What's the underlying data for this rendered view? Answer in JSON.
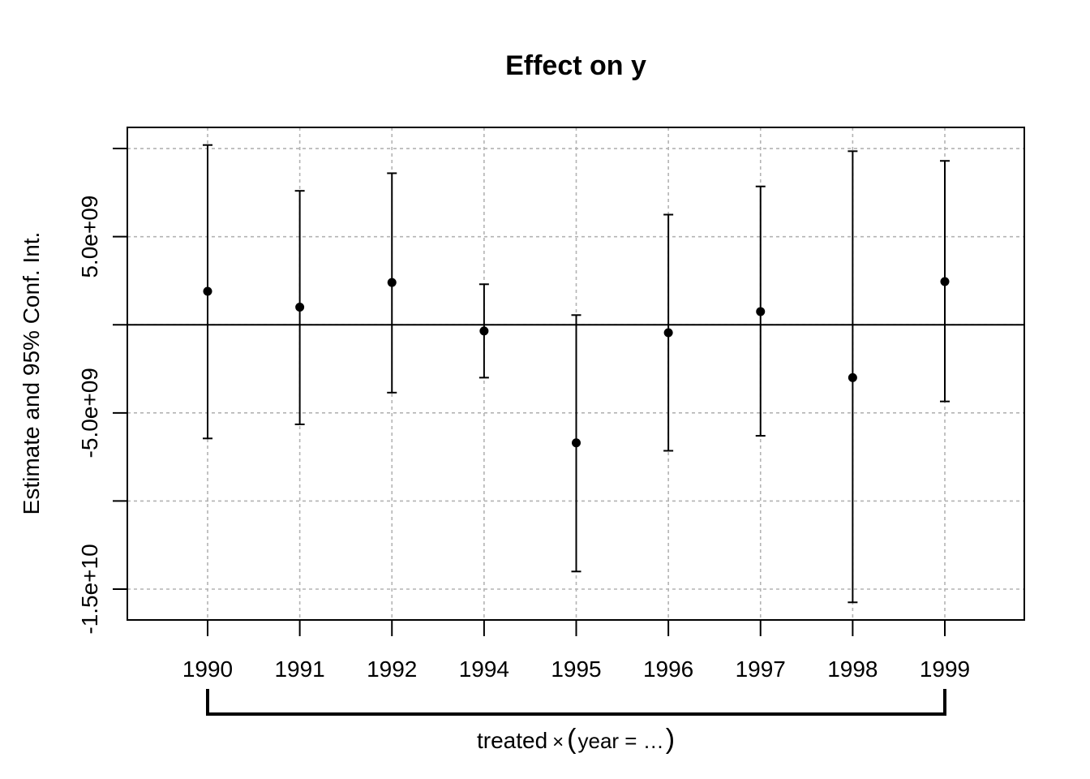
{
  "chart_data": {
    "type": "scatter",
    "title": "Effect on y",
    "ylabel": "Estimate and 95% Conf. Int.",
    "xlabel": "treated × (year = …)",
    "x_group_label": {
      "left": "treated",
      "times": "×",
      "open_paren": "(",
      "inner": "year = …",
      "close_paren": ")"
    },
    "categories": [
      "1990",
      "1991",
      "1992",
      "1994",
      "1995",
      "1996",
      "1997",
      "1998",
      "1999"
    ],
    "estimates": [
      1900000000.0,
      1000000000.0,
      2400000000.0,
      -350000000.0,
      -6700000000.0,
      -450000000.0,
      750000000.0,
      -3000000000.0,
      2450000000.0
    ],
    "ci_lower": [
      -6450000000.0,
      -5650000000.0,
      -3850000000.0,
      -3000000000.0,
      -14000000000.0,
      -7150000000.0,
      -6300000000.0,
      -15750000000.0,
      -4350000000.0
    ],
    "ci_upper": [
      10200000000.0,
      7600000000.0,
      8600000000.0,
      2300000000.0,
      550000000.0,
      6250000000.0,
      7850000000.0,
      9850000000.0,
      9300000000.0
    ],
    "y_ticks": [
      -15000000000,
      -10000000000,
      -5000000000,
      0,
      5000000000,
      10000000000
    ],
    "y_tick_labels": [
      {
        "value": -15000000000,
        "label": "-1.5e+10"
      },
      {
        "value": -5000000000,
        "label": "-5.0e+09"
      },
      {
        "value": 5000000000,
        "label": "5.0e+09"
      }
    ],
    "ylim": [
      -16750000000.0,
      11200000000.0
    ],
    "zero_line": 0,
    "grid": true,
    "colors": {
      "points": "#000000",
      "grid": "#b3b3b3",
      "axis": "#000000"
    }
  }
}
